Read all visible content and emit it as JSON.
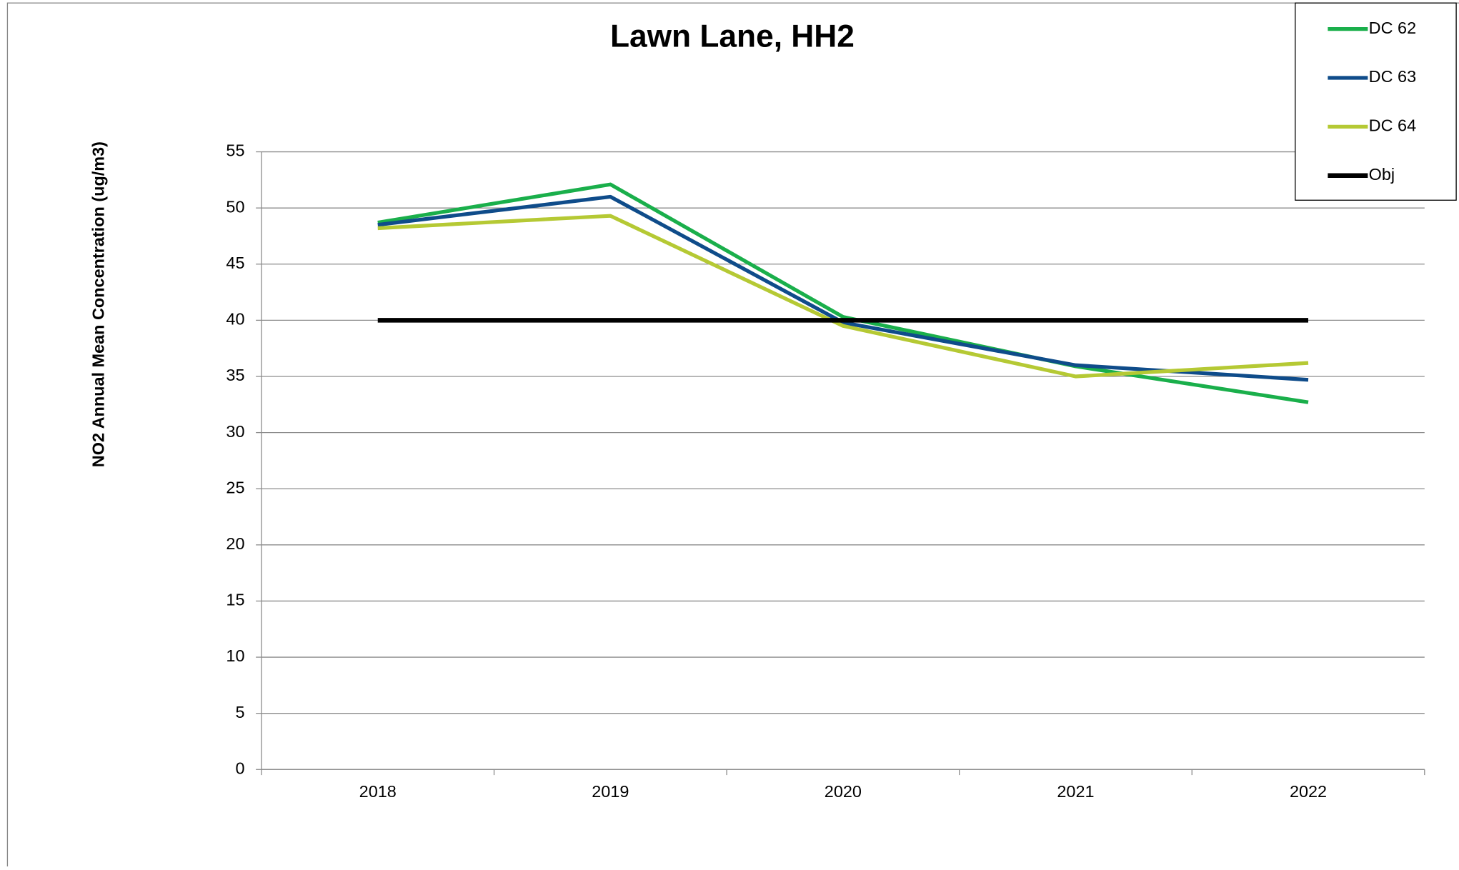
{
  "chart_data": {
    "type": "line",
    "title": "Lawn Lane, HH2",
    "y_label": "NO2 Annual Mean Concentration (ug/m3)",
    "categories": [
      "2018",
      "2019",
      "2020",
      "2021",
      "2022"
    ],
    "series": [
      {
        "name": "DC 62",
        "color": "#1aaf4b",
        "values": [
          48.7,
          52.1,
          40.3,
          35.9,
          32.7
        ]
      },
      {
        "name": "DC 63",
        "color": "#0f4c8a",
        "values": [
          48.5,
          51.0,
          39.8,
          36.0,
          34.7
        ]
      },
      {
        "name": "DC 64",
        "color": "#b5c934",
        "values": [
          48.2,
          49.3,
          39.5,
          35.0,
          36.2
        ]
      },
      {
        "name": "Obj",
        "color": "#000000",
        "values": [
          40,
          40,
          40,
          40,
          40
        ]
      }
    ],
    "ylim": [
      0,
      55
    ],
    "yticks": [
      0,
      5,
      10,
      15,
      20,
      25,
      30,
      35,
      40,
      45,
      50,
      55
    ],
    "grid": true,
    "legend": "top-right"
  }
}
